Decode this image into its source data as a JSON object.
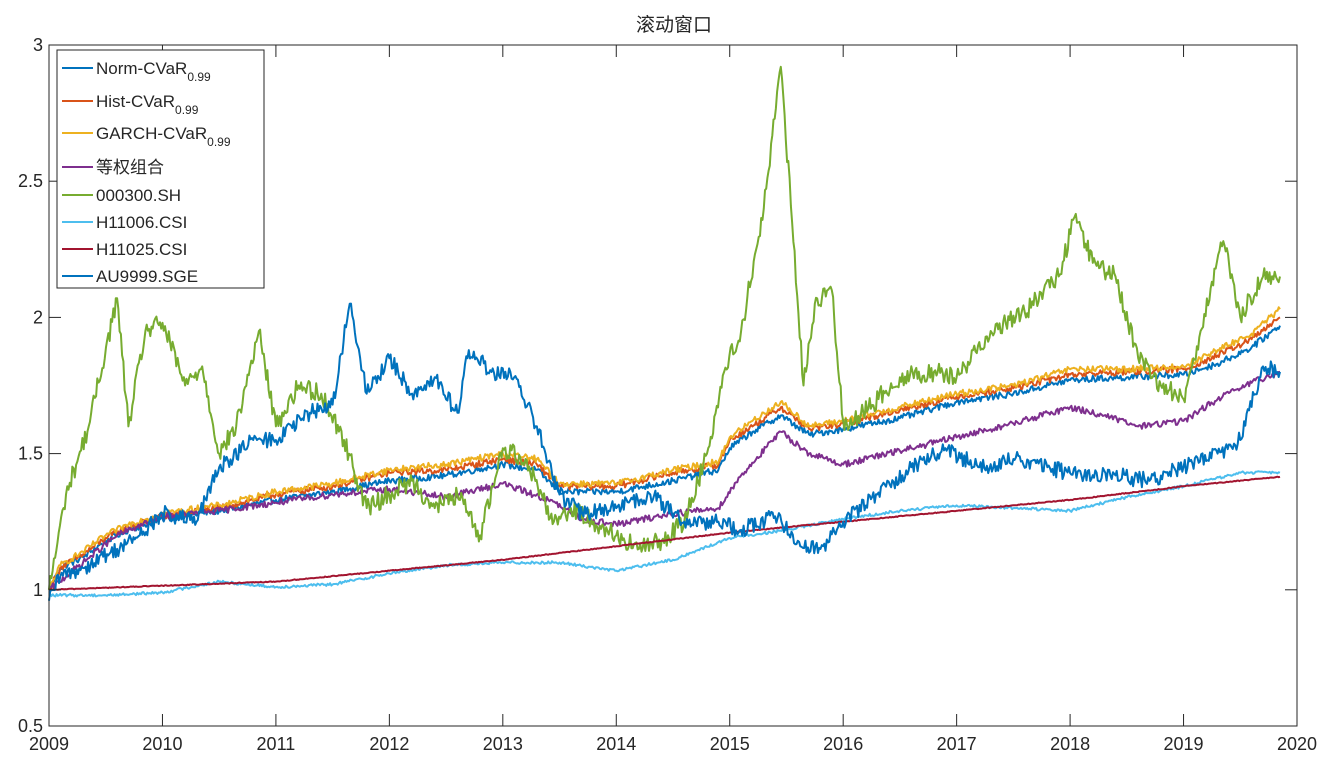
{
  "chart_data": {
    "type": "line",
    "title": "滚动窗口",
    "xlabel": "",
    "ylabel": "",
    "xlim": [
      2009,
      2020
    ],
    "ylim": [
      0.5,
      3
    ],
    "x_ticks": [
      "2009",
      "2010",
      "2011",
      "2012",
      "2013",
      "2014",
      "2015",
      "2016",
      "2017",
      "2018",
      "2019",
      "2020"
    ],
    "y_ticks": [
      "0.5",
      "1",
      "1.5",
      "2",
      "2.5",
      "3"
    ],
    "grid": false,
    "legend_position": "top-left",
    "series": [
      {
        "name": "Norm-CVaR",
        "subscript": "0.99",
        "color": "#0072BD",
        "x": [
          2009.0,
          2009.1,
          2009.3,
          2009.5,
          2009.7,
          2010.0,
          2010.5,
          2011.0,
          2011.5,
          2012.0,
          2012.5,
          2013.0,
          2013.3,
          2013.5,
          2014.0,
          2014.5,
          2014.9,
          2015.0,
          2015.2,
          2015.45,
          2015.7,
          2016.0,
          2016.5,
          2017.0,
          2017.5,
          2018.0,
          2018.5,
          2019.0,
          2019.3,
          2019.6,
          2019.85
        ],
        "y": [
          1.0,
          1.08,
          1.12,
          1.18,
          1.22,
          1.26,
          1.29,
          1.33,
          1.36,
          1.4,
          1.42,
          1.46,
          1.44,
          1.36,
          1.36,
          1.4,
          1.44,
          1.52,
          1.58,
          1.64,
          1.57,
          1.59,
          1.63,
          1.69,
          1.72,
          1.77,
          1.78,
          1.79,
          1.83,
          1.89,
          1.97
        ]
      },
      {
        "name": "Hist-CVaR",
        "subscript": "0.99",
        "color": "#D95319",
        "x": [
          2009.0,
          2009.1,
          2009.3,
          2009.5,
          2009.7,
          2010.0,
          2010.5,
          2011.0,
          2011.5,
          2012.0,
          2012.5,
          2013.0,
          2013.3,
          2013.5,
          2014.0,
          2014.5,
          2014.9,
          2015.0,
          2015.2,
          2015.45,
          2015.7,
          2016.0,
          2016.5,
          2017.0,
          2017.5,
          2018.0,
          2018.5,
          2019.0,
          2019.3,
          2019.6,
          2019.85
        ],
        "y": [
          1.0,
          1.08,
          1.13,
          1.19,
          1.23,
          1.27,
          1.3,
          1.35,
          1.38,
          1.43,
          1.44,
          1.48,
          1.46,
          1.38,
          1.38,
          1.43,
          1.46,
          1.55,
          1.6,
          1.67,
          1.59,
          1.61,
          1.66,
          1.71,
          1.74,
          1.79,
          1.8,
          1.81,
          1.86,
          1.92,
          2.0
        ]
      },
      {
        "name": "GARCH-CVaR",
        "subscript": "0.99",
        "color": "#EDB120",
        "x": [
          2009.0,
          2009.1,
          2009.3,
          2009.5,
          2009.7,
          2010.0,
          2010.5,
          2011.0,
          2011.5,
          2012.0,
          2012.5,
          2013.0,
          2013.3,
          2013.5,
          2014.0,
          2014.5,
          2014.9,
          2015.0,
          2015.2,
          2015.45,
          2015.7,
          2016.0,
          2016.5,
          2017.0,
          2017.5,
          2018.0,
          2018.5,
          2019.0,
          2019.3,
          2019.6,
          2019.85
        ],
        "y": [
          1.0,
          1.09,
          1.14,
          1.2,
          1.24,
          1.28,
          1.31,
          1.36,
          1.39,
          1.44,
          1.46,
          1.5,
          1.48,
          1.39,
          1.39,
          1.44,
          1.47,
          1.56,
          1.62,
          1.69,
          1.6,
          1.62,
          1.67,
          1.72,
          1.75,
          1.81,
          1.81,
          1.82,
          1.88,
          1.94,
          2.03
        ]
      },
      {
        "name": "等权组合",
        "color": "#7E2F8E",
        "x": [
          2009.0,
          2009.3,
          2009.6,
          2010.0,
          2010.5,
          2011.0,
          2011.5,
          2012.0,
          2012.5,
          2013.0,
          2013.4,
          2013.7,
          2014.0,
          2014.5,
          2014.9,
          2015.1,
          2015.45,
          2015.7,
          2016.0,
          2016.5,
          2017.0,
          2017.5,
          2018.0,
          2018.3,
          2018.6,
          2019.0,
          2019.3,
          2019.6,
          2019.85
        ],
        "y": [
          1.0,
          1.1,
          1.2,
          1.27,
          1.29,
          1.32,
          1.35,
          1.37,
          1.34,
          1.39,
          1.33,
          1.26,
          1.24,
          1.28,
          1.3,
          1.42,
          1.58,
          1.5,
          1.46,
          1.51,
          1.56,
          1.61,
          1.67,
          1.64,
          1.6,
          1.62,
          1.7,
          1.76,
          1.8
        ]
      },
      {
        "name": "000300.SH",
        "color": "#77AC30",
        "x": [
          2009.0,
          2009.15,
          2009.35,
          2009.6,
          2009.7,
          2009.85,
          2010.0,
          2010.2,
          2010.35,
          2010.5,
          2010.65,
          2010.85,
          2011.0,
          2011.2,
          2011.4,
          2011.6,
          2011.8,
          2012.0,
          2012.2,
          2012.4,
          2012.6,
          2012.8,
          2013.0,
          2013.2,
          2013.45,
          2013.6,
          2013.8,
          2014.0,
          2014.2,
          2014.4,
          2014.6,
          2014.8,
          2014.95,
          2015.1,
          2015.3,
          2015.45,
          2015.55,
          2015.65,
          2015.75,
          2015.9,
          2016.0,
          2016.1,
          2016.5,
          2016.8,
          2017.0,
          2017.3,
          2017.6,
          2017.9,
          2018.05,
          2018.2,
          2018.4,
          2018.6,
          2018.8,
          2019.0,
          2019.15,
          2019.35,
          2019.5,
          2019.7,
          2019.85
        ],
        "y": [
          1.0,
          1.35,
          1.6,
          2.07,
          1.6,
          1.95,
          1.98,
          1.75,
          1.82,
          1.5,
          1.6,
          1.95,
          1.6,
          1.75,
          1.72,
          1.55,
          1.3,
          1.35,
          1.4,
          1.3,
          1.35,
          1.2,
          1.52,
          1.48,
          1.25,
          1.3,
          1.25,
          1.2,
          1.15,
          1.18,
          1.25,
          1.5,
          1.8,
          1.95,
          2.4,
          2.92,
          2.35,
          1.75,
          2.05,
          2.1,
          1.62,
          1.62,
          1.78,
          1.8,
          1.78,
          1.95,
          2.02,
          2.15,
          2.38,
          2.2,
          2.15,
          1.85,
          1.75,
          1.7,
          1.95,
          2.28,
          2.0,
          2.15,
          2.15
        ]
      },
      {
        "name": "H11006.CSI",
        "color": "#4DBEEE",
        "x": [
          2009.0,
          2009.5,
          2010.0,
          2010.5,
          2011.0,
          2011.5,
          2012.0,
          2012.5,
          2013.0,
          2013.5,
          2014.0,
          2014.5,
          2015.0,
          2015.5,
          2016.0,
          2016.5,
          2017.0,
          2017.5,
          2018.0,
          2018.5,
          2019.0,
          2019.5,
          2019.85
        ],
        "y": [
          0.98,
          0.98,
          0.99,
          1.03,
          1.01,
          1.02,
          1.06,
          1.09,
          1.1,
          1.1,
          1.07,
          1.11,
          1.19,
          1.22,
          1.26,
          1.29,
          1.31,
          1.3,
          1.29,
          1.34,
          1.38,
          1.43,
          1.43
        ]
      },
      {
        "name": "H11025.CSI",
        "color": "#A2142F",
        "x": [
          2009.0,
          2010.0,
          2011.0,
          2012.0,
          2013.0,
          2014.0,
          2015.0,
          2016.0,
          2017.0,
          2018.0,
          2019.0,
          2019.85
        ],
        "y": [
          1.0,
          1.015,
          1.03,
          1.07,
          1.11,
          1.16,
          1.21,
          1.25,
          1.29,
          1.33,
          1.38,
          1.415
        ]
      },
      {
        "name": "AU9999.SGE",
        "color": "#0072BD",
        "x": [
          2009.0,
          2009.1,
          2009.3,
          2009.6,
          2009.8,
          2010.0,
          2010.3,
          2010.5,
          2010.8,
          2011.0,
          2011.3,
          2011.5,
          2011.65,
          2011.8,
          2012.0,
          2012.2,
          2012.4,
          2012.6,
          2012.7,
          2012.9,
          2013.1,
          2013.3,
          2013.5,
          2013.7,
          2014.0,
          2014.3,
          2014.6,
          2014.9,
          2015.1,
          2015.4,
          2015.6,
          2015.8,
          2016.0,
          2016.3,
          2016.6,
          2016.9,
          2017.2,
          2017.5,
          2017.8,
          2018.1,
          2018.4,
          2018.7,
          2019.0,
          2019.3,
          2019.5,
          2019.7,
          2019.85
        ],
        "y": [
          0.96,
          1.05,
          1.08,
          1.15,
          1.2,
          1.28,
          1.25,
          1.45,
          1.55,
          1.55,
          1.65,
          1.68,
          2.05,
          1.72,
          1.85,
          1.72,
          1.78,
          1.65,
          1.88,
          1.8,
          1.78,
          1.6,
          1.35,
          1.28,
          1.3,
          1.35,
          1.25,
          1.25,
          1.22,
          1.27,
          1.18,
          1.15,
          1.25,
          1.35,
          1.45,
          1.52,
          1.45,
          1.48,
          1.45,
          1.42,
          1.42,
          1.4,
          1.45,
          1.5,
          1.55,
          1.82,
          1.8
        ]
      }
    ]
  }
}
